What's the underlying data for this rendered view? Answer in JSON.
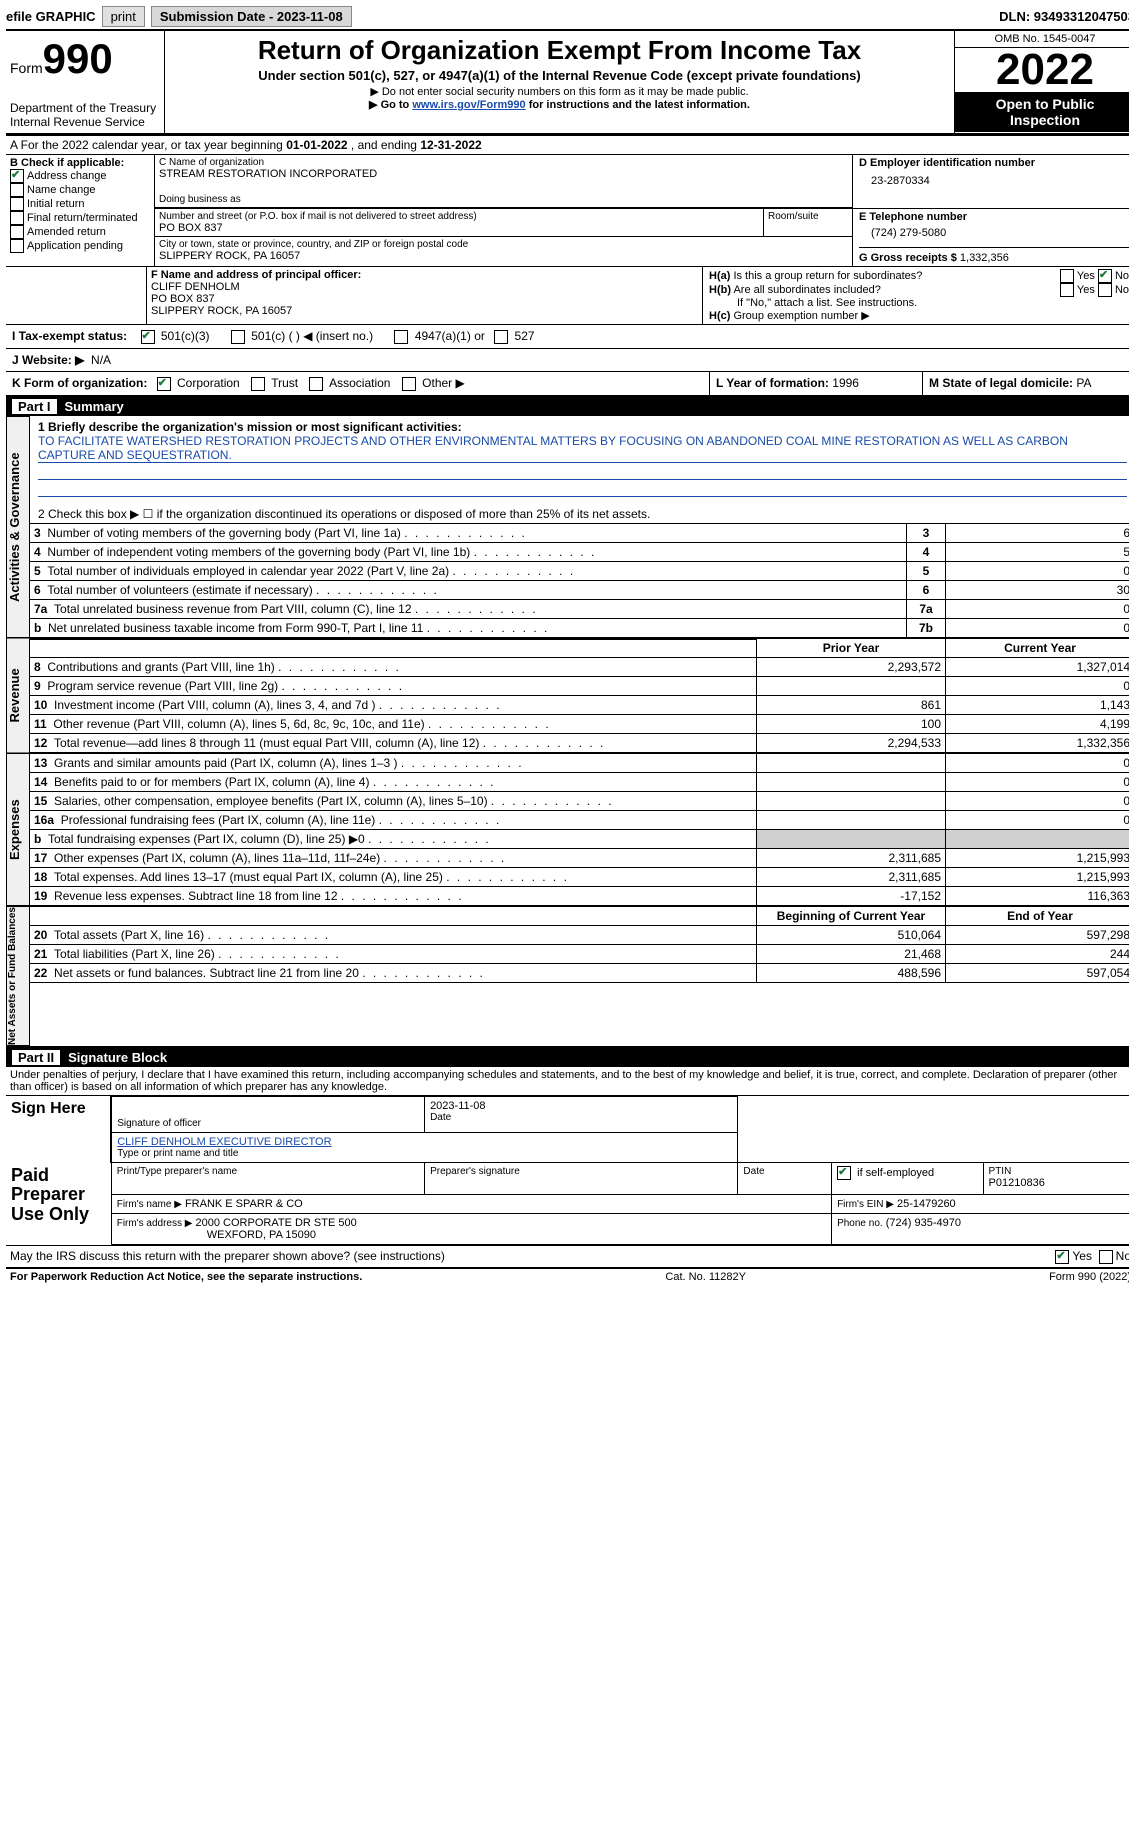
{
  "topbar": {
    "efile_label": "efile GRAPHIC",
    "print_btn": "print",
    "submission_label": "Submission Date - 2023-11-08",
    "dln_label": "DLN: 93493312047503"
  },
  "header": {
    "form_label": "Form",
    "form_number": "990",
    "dept1": "Department of the Treasury",
    "dept2": "Internal Revenue Service",
    "title": "Return of Organization Exempt From Income Tax",
    "sub1": "Under section 501(c), 527, or 4947(a)(1) of the Internal Revenue Code (except private foundations)",
    "sub2": "▶ Do not enter social security numbers on this form as it may be made public.",
    "sub3_pre": "▶ Go to ",
    "sub3_link": "www.irs.gov/Form990",
    "sub3_post": " for instructions and the latest information.",
    "omb": "OMB No. 1545-0047",
    "tax_year": "2022",
    "open_public": "Open to Public Inspection"
  },
  "lineA": {
    "text_pre": "A For the 2022 calendar year, or tax year beginning ",
    "begin": "01-01-2022",
    "mid": " , and ending ",
    "end": "12-31-2022"
  },
  "boxB": {
    "label": "B Check if applicable:",
    "addr_change": "Address change",
    "name_change": "Name change",
    "initial": "Initial return",
    "final": "Final return/terminated",
    "amended": "Amended return",
    "app_pending": "Application pending"
  },
  "boxC": {
    "name_label": "C Name of organization",
    "name": "STREAM RESTORATION INCORPORATED",
    "dba_label": "Doing business as",
    "street_label": "Number and street (or P.O. box if mail is not delivered to street address)",
    "room_label": "Room/suite",
    "street": "PO BOX 837",
    "city_label": "City or town, state or province, country, and ZIP or foreign postal code",
    "city": "SLIPPERY ROCK, PA  16057"
  },
  "boxD": {
    "label": "D Employer identification number",
    "value": "23-2870334"
  },
  "boxE": {
    "label": "E Telephone number",
    "value": "(724) 279-5080"
  },
  "boxG": {
    "label": "G Gross receipts $",
    "value": "1,332,356"
  },
  "boxF": {
    "label": "F Name and address of principal officer:",
    "name": "CLIFF DENHOLM",
    "street": "PO BOX 837",
    "city": "SLIPPERY ROCK, PA  16057"
  },
  "boxH": {
    "a_label": "H(a) Is this a group return for subordinates?",
    "b_label": "H(b) Are all subordinates included?",
    "b_note": "If \"No,\" attach a list. See instructions.",
    "c_label": "H(c) Group exemption number ▶",
    "yes": "Yes",
    "no": "No"
  },
  "lineI": {
    "label": "I   Tax-exempt status:",
    "c3": "501(c)(3)",
    "c_other": "501(c) (    ) ◀ (insert no.)",
    "a4947": "4947(a)(1) or",
    "s527": "527"
  },
  "lineJ": {
    "label": "J   Website: ▶",
    "value": "N/A"
  },
  "lineK": {
    "label": "K Form of organization:",
    "corp": "Corporation",
    "trust": "Trust",
    "assoc": "Association",
    "other": "Other ▶"
  },
  "lineL": {
    "label": "L Year of formation:",
    "value": "1996"
  },
  "lineM": {
    "label": "M State of legal domicile:",
    "value": "PA"
  },
  "part1": {
    "title": "Part I",
    "name": "Summary",
    "q1_label": "1  Briefly describe the organization's mission or most significant activities:",
    "q1_text": "TO FACILITATE WATERSHED RESTORATION PROJECTS AND OTHER ENVIRONMENTAL MATTERS BY FOCUSING ON ABANDONED COAL MINE RESTORATION AS WELL AS CARBON CAPTURE AND SEQUESTRATION.",
    "q2": "2  Check this box ▶ ☐ if the organization discontinued its operations or disposed of more than 25% of its net assets.",
    "rows_ag": [
      {
        "n": "3",
        "t": "Number of voting members of the governing body (Part VI, line 1a)",
        "box": "3",
        "v": "6"
      },
      {
        "n": "4",
        "t": "Number of independent voting members of the governing body (Part VI, line 1b)",
        "box": "4",
        "v": "5"
      },
      {
        "n": "5",
        "t": "Total number of individuals employed in calendar year 2022 (Part V, line 2a)",
        "box": "5",
        "v": "0"
      },
      {
        "n": "6",
        "t": "Total number of volunteers (estimate if necessary)",
        "box": "6",
        "v": "30"
      },
      {
        "n": "7a",
        "t": "Total unrelated business revenue from Part VIII, column (C), line 12",
        "box": "7a",
        "v": "0"
      },
      {
        "n": "b",
        "t": "Net unrelated business taxable income from Form 990-T, Part I, line 11",
        "box": "7b",
        "v": "0"
      }
    ],
    "prior_year": "Prior Year",
    "current_year": "Current Year",
    "rows_rev": [
      {
        "n": "8",
        "t": "Contributions and grants (Part VIII, line 1h)",
        "py": "2,293,572",
        "cy": "1,327,014"
      },
      {
        "n": "9",
        "t": "Program service revenue (Part VIII, line 2g)",
        "py": "",
        "cy": "0"
      },
      {
        "n": "10",
        "t": "Investment income (Part VIII, column (A), lines 3, 4, and 7d )",
        "py": "861",
        "cy": "1,143"
      },
      {
        "n": "11",
        "t": "Other revenue (Part VIII, column (A), lines 5, 6d, 8c, 9c, 10c, and 11e)",
        "py": "100",
        "cy": "4,199"
      },
      {
        "n": "12",
        "t": "Total revenue—add lines 8 through 11 (must equal Part VIII, column (A), line 12)",
        "py": "2,294,533",
        "cy": "1,332,356"
      }
    ],
    "rows_exp": [
      {
        "n": "13",
        "t": "Grants and similar amounts paid (Part IX, column (A), lines 1–3 )",
        "py": "",
        "cy": "0"
      },
      {
        "n": "14",
        "t": "Benefits paid to or for members (Part IX, column (A), line 4)",
        "py": "",
        "cy": "0"
      },
      {
        "n": "15",
        "t": "Salaries, other compensation, employee benefits (Part IX, column (A), lines 5–10)",
        "py": "",
        "cy": "0"
      },
      {
        "n": "16a",
        "t": "Professional fundraising fees (Part IX, column (A), line 11e)",
        "py": "",
        "cy": "0"
      },
      {
        "n": "b",
        "t": "Total fundraising expenses (Part IX, column (D), line 25) ▶0",
        "py": "shade",
        "cy": "shade"
      },
      {
        "n": "17",
        "t": "Other expenses (Part IX, column (A), lines 11a–11d, 11f–24e)",
        "py": "2,311,685",
        "cy": "1,215,993"
      },
      {
        "n": "18",
        "t": "Total expenses. Add lines 13–17 (must equal Part IX, column (A), line 25)",
        "py": "2,311,685",
        "cy": "1,215,993"
      },
      {
        "n": "19",
        "t": "Revenue less expenses. Subtract line 18 from line 12",
        "py": "-17,152",
        "cy": "116,363"
      }
    ],
    "begin_year": "Beginning of Current Year",
    "end_year": "End of Year",
    "rows_na": [
      {
        "n": "20",
        "t": "Total assets (Part X, line 16)",
        "py": "510,064",
        "cy": "597,298"
      },
      {
        "n": "21",
        "t": "Total liabilities (Part X, line 26)",
        "py": "21,468",
        "cy": "244"
      },
      {
        "n": "22",
        "t": "Net assets or fund balances. Subtract line 21 from line 20",
        "py": "488,596",
        "cy": "597,054"
      }
    ],
    "vlabels": {
      "ag": "Activities & Governance",
      "rev": "Revenue",
      "exp": "Expenses",
      "na": "Net Assets or Fund Balances"
    }
  },
  "part2": {
    "title": "Part II",
    "name": "Signature Block",
    "perjury": "Under penalties of perjury, I declare that I have examined this return, including accompanying schedules and statements, and to the best of my knowledge and belief, it is true, correct, and complete. Declaration of preparer (other than officer) is based on all information of which preparer has any knowledge.",
    "sign_here": "Sign Here",
    "sig_officer": "Signature of officer",
    "sig_date": "2023-11-08",
    "date_label": "Date",
    "officer_name": "CLIFF DENHOLM  EXECUTIVE DIRECTOR",
    "type_label": "Type or print name and title",
    "paid_prep": "Paid Preparer Use Only",
    "prep_name_label": "Print/Type preparer's name",
    "prep_sig_label": "Preparer's signature",
    "check_self": "Check ☑ if self-employed",
    "ptin_label": "PTIN",
    "ptin": "P01210836",
    "firm_name_label": "Firm's name    ▶",
    "firm_name": "FRANK E SPARR & CO",
    "firm_ein_label": "Firm's EIN ▶",
    "firm_ein": "25-1479260",
    "firm_addr_label": "Firm's address ▶",
    "firm_addr1": "2000 CORPORATE DR STE 500",
    "firm_addr2": "WEXFORD, PA  15090",
    "phone_label": "Phone no.",
    "phone": "(724) 935-4970",
    "discuss": "May the IRS discuss this return with the preparer shown above? (see instructions)",
    "yes": "Yes",
    "no": "No"
  },
  "footer": {
    "pra": "For Paperwork Reduction Act Notice, see the separate instructions.",
    "cat": "Cat. No. 11282Y",
    "form": "Form 990 (2022)"
  }
}
